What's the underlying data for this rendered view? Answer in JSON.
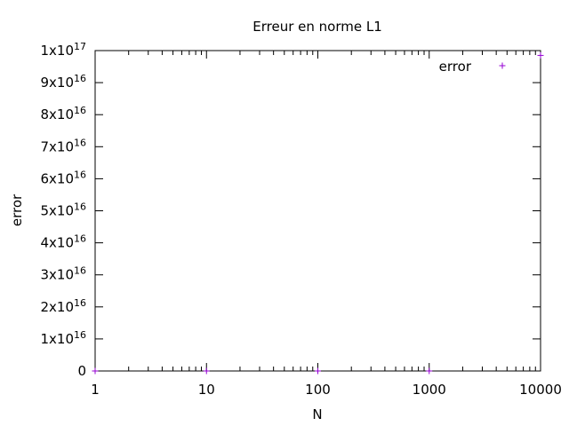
{
  "chart_data": {
    "type": "scatter",
    "title": "Erreur en norme L1",
    "xlabel": "N",
    "ylabel": "error",
    "x_scale": "log",
    "xlim": [
      1,
      10000
    ],
    "ylim": [
      0,
      1e+17
    ],
    "grid": false,
    "legend_position": "top-right",
    "x_ticks": [
      {
        "value": 1,
        "label": "1"
      },
      {
        "value": 10,
        "label": "10"
      },
      {
        "value": 100,
        "label": "100"
      },
      {
        "value": 1000,
        "label": "1000"
      },
      {
        "value": 10000,
        "label": "10000"
      }
    ],
    "y_ticks": [
      {
        "value": 0,
        "mant": "0",
        "exp": ""
      },
      {
        "value": 1e+16,
        "mant": "1x10",
        "exp": "16"
      },
      {
        "value": 2e+16,
        "mant": "2x10",
        "exp": "16"
      },
      {
        "value": 3e+16,
        "mant": "3x10",
        "exp": "16"
      },
      {
        "value": 4e+16,
        "mant": "4x10",
        "exp": "16"
      },
      {
        "value": 5e+16,
        "mant": "5x10",
        "exp": "16"
      },
      {
        "value": 6e+16,
        "mant": "6x10",
        "exp": "16"
      },
      {
        "value": 7e+16,
        "mant": "7x10",
        "exp": "16"
      },
      {
        "value": 8e+16,
        "mant": "8x10",
        "exp": "16"
      },
      {
        "value": 9e+16,
        "mant": "9x10",
        "exp": "16"
      },
      {
        "value": 1e+17,
        "mant": "1x10",
        "exp": "17"
      }
    ],
    "series": [
      {
        "name": "error",
        "color": "#9400d3",
        "marker": "plus",
        "points": [
          {
            "x": 1,
            "y": 0
          },
          {
            "x": 10,
            "y": 0
          },
          {
            "x": 100,
            "y": 0
          },
          {
            "x": 1000,
            "y": 0
          },
          {
            "x": 10000,
            "y": 9.85e+16
          }
        ]
      }
    ]
  }
}
